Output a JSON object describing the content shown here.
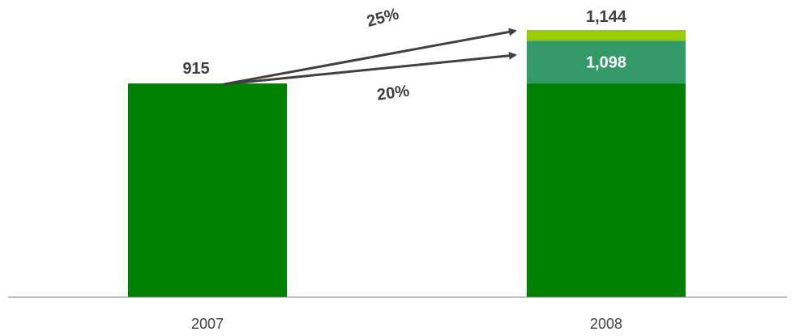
{
  "chart_data": {
    "type": "bar",
    "stacked": true,
    "categories": [
      "2007",
      "2008"
    ],
    "series": [
      {
        "values": [
          915,
          915
        ],
        "color": "#008000"
      },
      {
        "values": [
          0,
          183
        ],
        "color": "#339966"
      },
      {
        "values": [
          0,
          46
        ],
        "color": "#99cc00"
      }
    ],
    "data_labels": [
      {
        "category": "2007",
        "value": 915,
        "text": "915"
      },
      {
        "category": "2008",
        "value": 1098,
        "text": "1,098"
      },
      {
        "category": "2008",
        "value": 1144,
        "text": "1,144"
      }
    ],
    "annotations": [
      {
        "text": "25%",
        "from": "2007",
        "to_value": 1144
      },
      {
        "text": "20%",
        "from": "2007",
        "to_value": 1098
      }
    ],
    "arrow_color": "#404040",
    "ylim": [
      0,
      1144
    ],
    "grid": false,
    "legend": "none"
  }
}
